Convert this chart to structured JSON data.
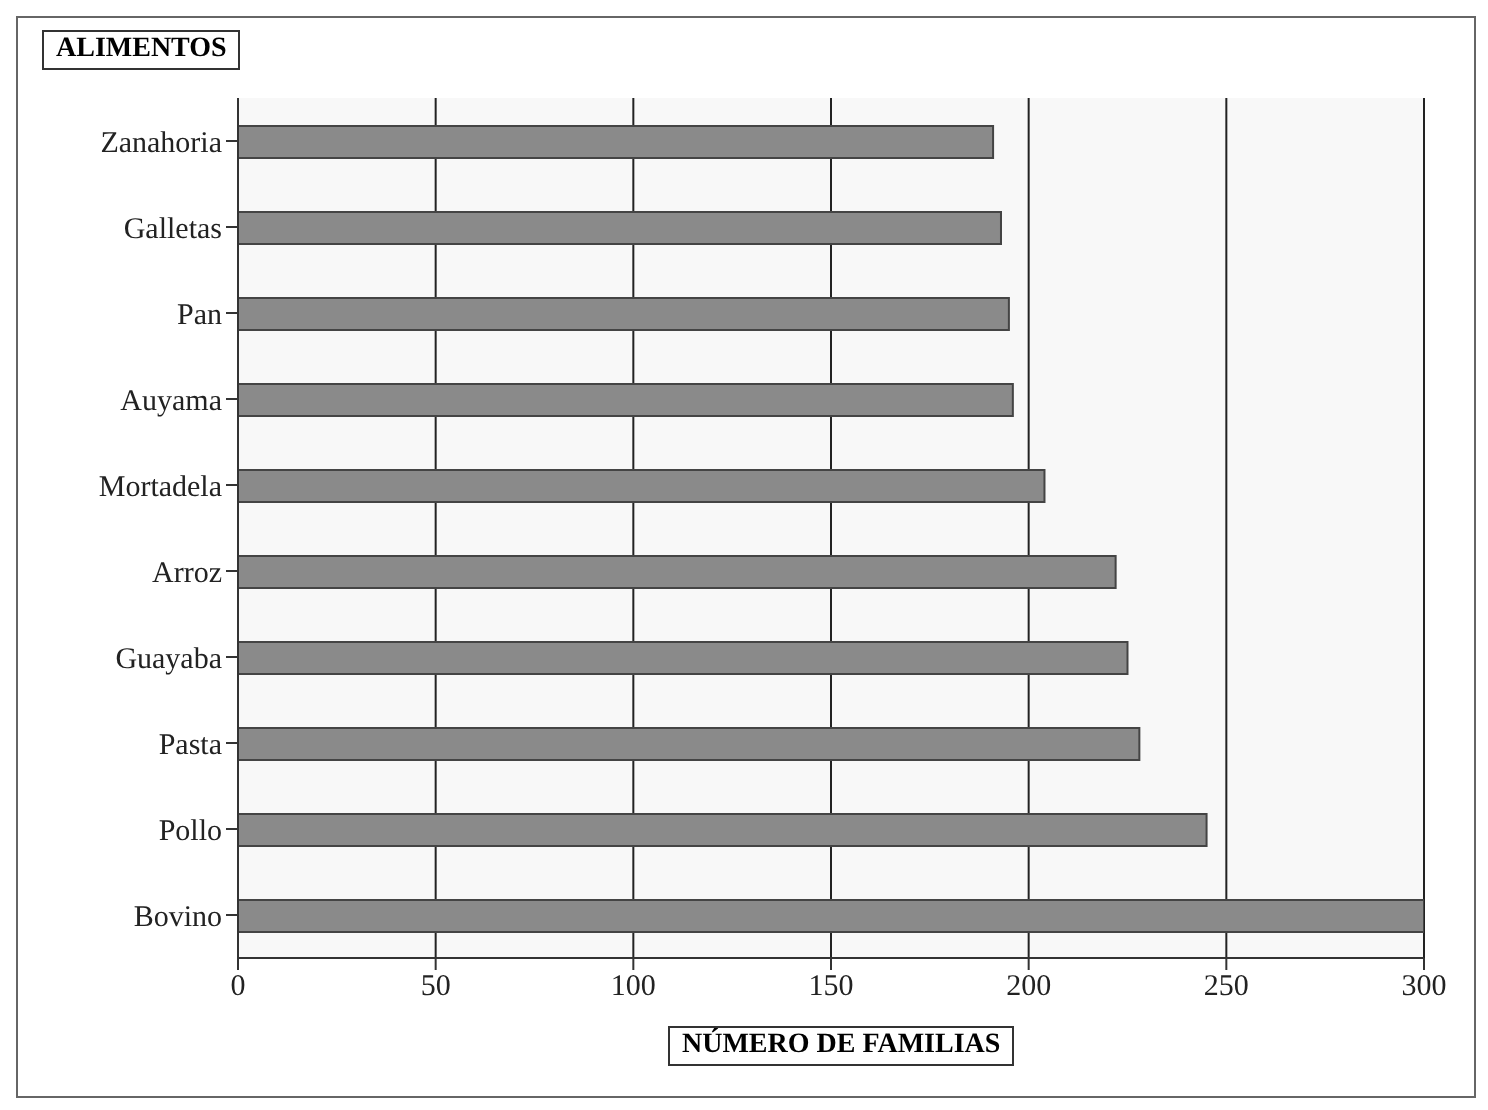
{
  "chart_data": {
    "type": "bar",
    "orientation": "horizontal",
    "ylabel": "ALIMENTOS",
    "xlabel": "NÚMERO DE FAMILIAS",
    "categories": [
      "Zanahoria",
      "Galletas",
      "Pan",
      "Auyama",
      "Mortadela",
      "Arroz",
      "Guayaba",
      "Pasta",
      "Pollo",
      "Bovino"
    ],
    "values": [
      191,
      193,
      195,
      196,
      204,
      222,
      225,
      228,
      245,
      300
    ],
    "color": "#8a8a8a",
    "xlim": [
      0,
      300
    ],
    "xticks": [
      0,
      50,
      100,
      150,
      200,
      250,
      300
    ],
    "grid": "x"
  }
}
